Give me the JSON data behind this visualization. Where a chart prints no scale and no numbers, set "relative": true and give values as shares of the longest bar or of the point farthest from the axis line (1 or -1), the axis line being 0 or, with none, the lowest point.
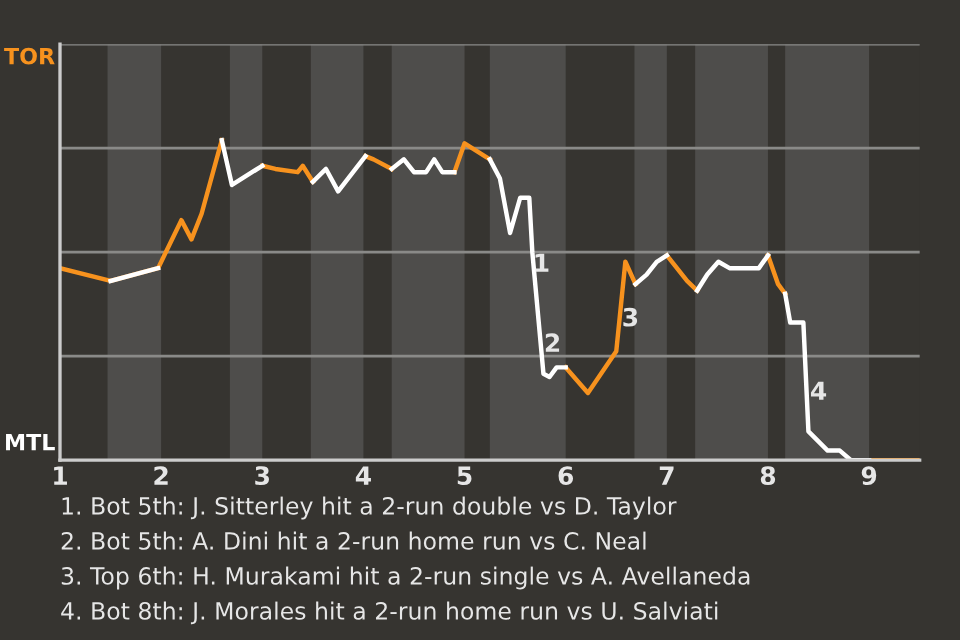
{
  "chart_data": {
    "type": "line",
    "relative": true,
    "x": [
      1.0,
      1.5,
      1.97,
      2.2,
      2.3,
      2.4,
      2.6,
      2.7,
      3.0,
      3.13,
      3.35,
      3.4,
      3.5,
      3.63,
      3.75,
      4.02,
      4.1,
      4.28,
      4.4,
      4.5,
      4.62,
      4.7,
      4.78,
      4.9,
      5.0,
      5.25,
      5.35,
      5.45,
      5.55,
      5.64,
      5.67,
      5.78,
      5.84,
      5.91,
      6.0,
      6.22,
      6.5,
      6.59,
      6.69,
      6.8,
      6.9,
      7.0,
      7.2,
      7.3,
      7.4,
      7.51,
      7.62,
      7.91,
      8.0,
      8.1,
      8.17,
      8.22,
      8.35,
      8.4,
      8.59,
      8.71,
      8.82,
      9.0,
      9.5
    ],
    "series": [
      {
        "color": "#f7921e",
        "values": [
          0.6,
          0.56,
          0.6,
          0.75,
          0.69,
          0.77,
          1.0,
          null,
          0.92,
          0.91,
          0.9,
          0.92,
          0.87,
          null,
          null,
          0.95,
          0.94,
          0.91,
          null,
          null,
          null,
          null,
          null,
          0.9,
          0.99,
          0.94,
          null,
          null,
          null,
          null,
          null,
          null,
          null,
          null,
          0.29,
          0.21,
          0.34,
          0.62,
          0.55,
          null,
          null,
          0.64,
          0.56,
          0.53,
          null,
          null,
          null,
          null,
          0.64,
          0.55,
          0.52,
          null,
          null,
          null,
          null,
          null,
          null,
          0.0,
          0.0
        ]
      },
      {
        "color": "#ffffff",
        "values": [
          null,
          0.56,
          0.6,
          null,
          null,
          null,
          1.0,
          0.86,
          0.92,
          null,
          null,
          null,
          0.87,
          0.91,
          0.84,
          0.95,
          null,
          0.91,
          0.94,
          0.9,
          0.9,
          0.94,
          0.9,
          0.9,
          null,
          0.94,
          0.88,
          0.71,
          0.82,
          0.82,
          0.65,
          0.27,
          0.26,
          0.29,
          0.29,
          null,
          null,
          null,
          0.55,
          0.58,
          0.62,
          0.64,
          null,
          0.53,
          0.58,
          0.62,
          0.6,
          0.6,
          0.64,
          null,
          0.52,
          0.43,
          0.43,
          0.09,
          0.03,
          0.03,
          0.0,
          0.0,
          null
        ]
      }
    ],
    "xlim": [
      1,
      9.5
    ],
    "xticks": [
      1,
      2,
      3,
      4,
      5,
      6,
      7,
      8,
      9
    ],
    "grid": "y",
    "bands": [
      {
        "axis": "x",
        "from": 1.47,
        "to": 2.0,
        "color": "#4e4d4b"
      },
      {
        "axis": "x",
        "from": 2.68,
        "to": 3.0,
        "color": "#4e4d4b"
      },
      {
        "axis": "x",
        "from": 3.48,
        "to": 4.0,
        "color": "#4e4d4b"
      },
      {
        "axis": "x",
        "from": 4.28,
        "to": 5.0,
        "color": "#4e4d4b"
      },
      {
        "axis": "x",
        "from": 5.25,
        "to": 6.0,
        "color": "#4e4d4b"
      },
      {
        "axis": "x",
        "from": 6.68,
        "to": 7.0,
        "color": "#4e4d4b"
      },
      {
        "axis": "x",
        "from": 7.28,
        "to": 8.0,
        "color": "#4e4d4b"
      },
      {
        "axis": "x",
        "from": 8.17,
        "to": 9.0,
        "color": "#4e4d4b"
      }
    ],
    "annotations": [
      "TOR",
      "MTL",
      {
        "text": "1",
        "x": 5.76,
        "y": 0.61
      },
      {
        "text": "2",
        "x": 5.87,
        "y": 0.36
      },
      {
        "text": "3",
        "x": 6.64,
        "y": 0.44
      },
      {
        "text": "4",
        "x": 8.5,
        "y": 0.21
      },
      "1. Bot 5th: J. Sitterley hit a 2-run double vs D. Taylor",
      "2. Bot 5th: A. Dini hit a 2-run home run vs C. Neal",
      "3. Top 6th: H. Murakami hit a 2-run single vs A. Avellaneda",
      "4. Bot 8th: J. Morales hit a 2-run home run vs U. Salviati"
    ]
  }
}
